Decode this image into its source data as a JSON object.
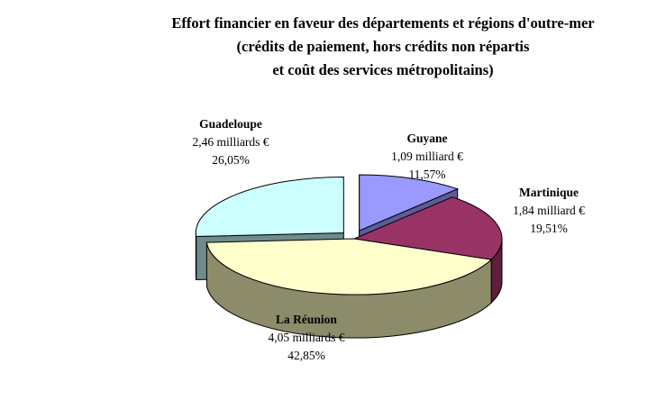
{
  "chart_data": {
    "type": "pie",
    "title_lines": [
      "Effort financier en faveur des départements et régions d'outre-mer",
      "(crédits de paiement, hors crédits non répartis",
      "et coût des services métropolitains)"
    ],
    "slices": [
      {
        "name": "Guyane",
        "amount": "1,09 milliard €",
        "percent": "11,57%",
        "value": 11.57,
        "color": "#9999ff",
        "side": "#5c5c99",
        "exploded": true
      },
      {
        "name": "Martinique",
        "amount": "1,84 milliard €",
        "percent": "19,51%",
        "value": 19.51,
        "color": "#993366",
        "side": "#5c1f3d",
        "exploded": false
      },
      {
        "name": "La Réunion",
        "amount": "4,05 milliards €",
        "percent": "42,85%",
        "value": 42.85,
        "color": "#ffffcc",
        "side": "#8c8c6a",
        "exploded": false
      },
      {
        "name": "Guadeloupe",
        "amount": "2,46 milliards €",
        "percent": "26,05%",
        "value": 26.05,
        "color": "#ccffff",
        "side": "#6f8c8c",
        "exploded": true
      }
    ],
    "style": "3d-exploded-pie",
    "legend": "none"
  }
}
